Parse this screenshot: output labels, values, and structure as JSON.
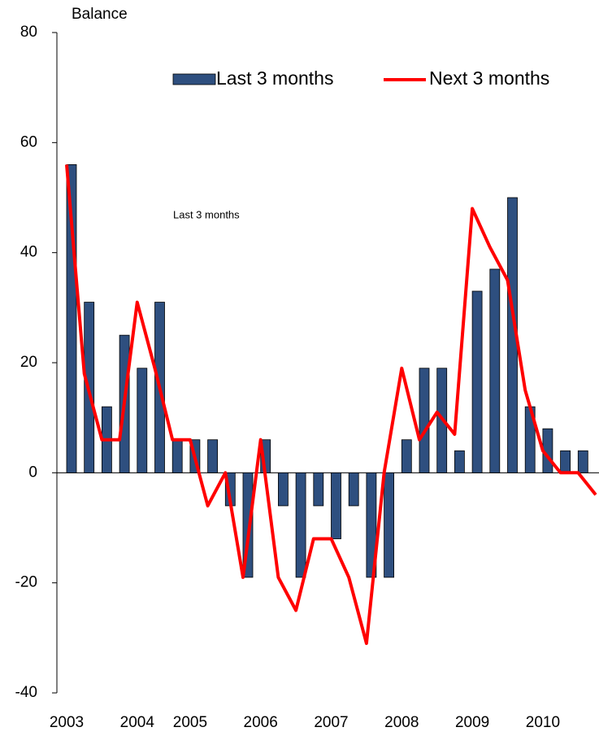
{
  "chart_data": {
    "type": "bar_line",
    "y_axis_label": "Balance",
    "annotation": "Last 3 months",
    "categories": [
      "2003",
      null,
      null,
      null,
      "2004",
      null,
      null,
      "2005",
      null,
      null,
      null,
      "2006",
      null,
      null,
      null,
      "2007",
      null,
      null,
      null,
      "2008",
      null,
      null,
      null,
      "2009",
      null,
      null,
      null,
      "2010",
      null,
      null,
      null
    ],
    "series": [
      {
        "name": "Last 3 months",
        "type": "bar",
        "color": "#2e4f7f",
        "values": [
          56,
          31,
          12,
          25,
          19,
          31,
          6,
          6,
          6,
          -6,
          -19,
          6,
          -6,
          -19,
          -6,
          -12,
          -6,
          -19,
          -19,
          6,
          19,
          19,
          4,
          33,
          37,
          50,
          12,
          8,
          4,
          4,
          null
        ]
      },
      {
        "name": "Next 3 months",
        "type": "line",
        "color": "#ff0000",
        "values": [
          56,
          18,
          6,
          6,
          31,
          19,
          6,
          6,
          -6,
          0,
          -19,
          6,
          -19,
          -25,
          -12,
          -12,
          -19,
          -31,
          0,
          19,
          6,
          11,
          7,
          48,
          41,
          35,
          15,
          4,
          0,
          0,
          -4
        ]
      }
    ],
    "ylim": [
      -40,
      80
    ],
    "yticks": [
      -40,
      -20,
      0,
      20,
      40,
      60,
      80
    ]
  }
}
